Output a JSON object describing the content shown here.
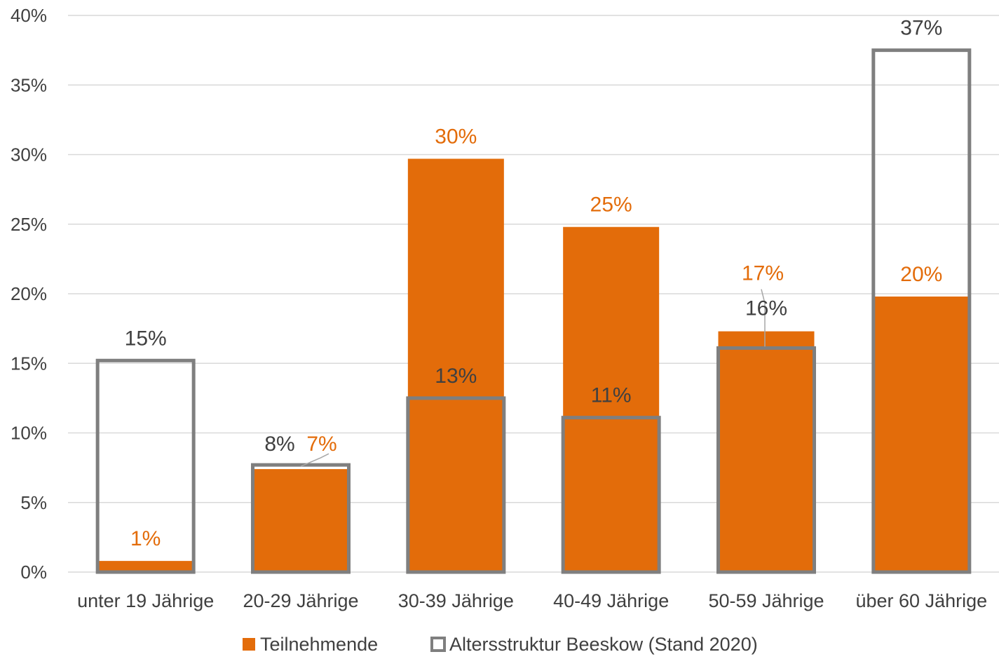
{
  "chart_data": {
    "type": "bar",
    "categories": [
      "unter 19 Jährige",
      "20-29 Jährige",
      "30-39 Jährige",
      "40-49 Jährige",
      "50-59 Jährige",
      "über 60 Jährige"
    ],
    "series": [
      {
        "name": "Teilnehmende",
        "values": [
          0.8,
          7.4,
          29.7,
          24.8,
          17.3,
          19.8
        ],
        "labels": [
          "1%",
          "7%",
          "30%",
          "25%",
          "17%",
          "20%"
        ],
        "color": "#E36C0A",
        "style": "filled"
      },
      {
        "name": "Altersstruktur Beeskow (Stand 2020)",
        "values": [
          15.2,
          7.7,
          12.5,
          11.1,
          16.1,
          37.5
        ],
        "labels": [
          "15%",
          "8%",
          "13%",
          "11%",
          "16%",
          "37%"
        ],
        "color": "#7F7F7F",
        "style": "outline"
      }
    ],
    "ylim": [
      0,
      40
    ],
    "yticks": [
      "0%",
      "5%",
      "10%",
      "15%",
      "20%",
      "25%",
      "30%",
      "35%",
      "40%"
    ],
    "grid": true,
    "legend_position": "bottom",
    "label_color_teilnehmende": "#E36C0A",
    "label_color_altersstruktur": "#404040"
  }
}
